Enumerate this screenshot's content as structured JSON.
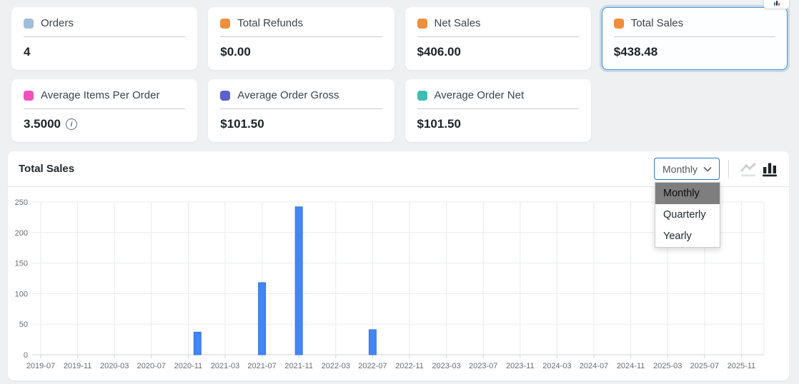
{
  "corner_button": {
    "visible": true,
    "icon": "mini-bar-chart-icon"
  },
  "stat_cards": [
    {
      "label": "Orders",
      "value": "4",
      "color": "#a0bcd9",
      "selected": false,
      "has_info": false
    },
    {
      "label": "Total Refunds",
      "value": "$0.00",
      "color": "#ef8e3d",
      "selected": false,
      "has_info": false
    },
    {
      "label": "Net Sales",
      "value": "$406.00",
      "color": "#ef8e3d",
      "selected": false,
      "has_info": false
    },
    {
      "label": "Total Sales",
      "value": "$438.48",
      "color": "#ef8e3d",
      "selected": true,
      "has_info": false
    },
    {
      "label": "Average Items Per Order",
      "value": "3.5000",
      "color": "#f14fbe",
      "selected": false,
      "has_info": true
    },
    {
      "label": "Average Order Gross",
      "value": "$101.50",
      "color": "#5b61c9",
      "selected": false,
      "has_info": false
    },
    {
      "label": "Average Order Net",
      "value": "$101.50",
      "color": "#3ebcb4",
      "selected": false,
      "has_info": false
    }
  ],
  "chart_panel": {
    "title": "Total Sales",
    "interval_select": {
      "value": "Monthly",
      "open": true,
      "options": [
        "Monthly",
        "Quarterly",
        "Yearly"
      ],
      "active_option": "Monthly",
      "border_color": "#3077c0"
    },
    "chart_type_icons": [
      {
        "name": "line-chart",
        "active": false
      },
      {
        "name": "bar-chart",
        "active": true
      }
    ]
  },
  "chart_data": {
    "type": "bar",
    "title": "Total Sales",
    "interval": "Monthly",
    "x_start": "2019-07",
    "x_tick_labels": [
      "2019-07",
      "2019-11",
      "2020-03",
      "2020-07",
      "2020-11",
      "2021-03",
      "2021-07",
      "2021-11",
      "2022-03",
      "2022-07",
      "2022-11",
      "2023-03",
      "2023-07",
      "2023-11",
      "2024-03",
      "2024-07",
      "2024-11",
      "2025-03",
      "2025-07",
      "2025-11"
    ],
    "y_ticks": [
      0,
      50,
      100,
      150,
      200,
      250
    ],
    "ylim": [
      0,
      250
    ],
    "grid": true,
    "legend": "none",
    "bar_color": "#4285f4",
    "bar_stroke": "#3a76d8",
    "bars": [
      {
        "month": "2020-12",
        "value": 37
      },
      {
        "month": "2021-07",
        "value": 118
      },
      {
        "month": "2021-11",
        "value": 242
      },
      {
        "month": "2022-07",
        "value": 41
      }
    ]
  }
}
